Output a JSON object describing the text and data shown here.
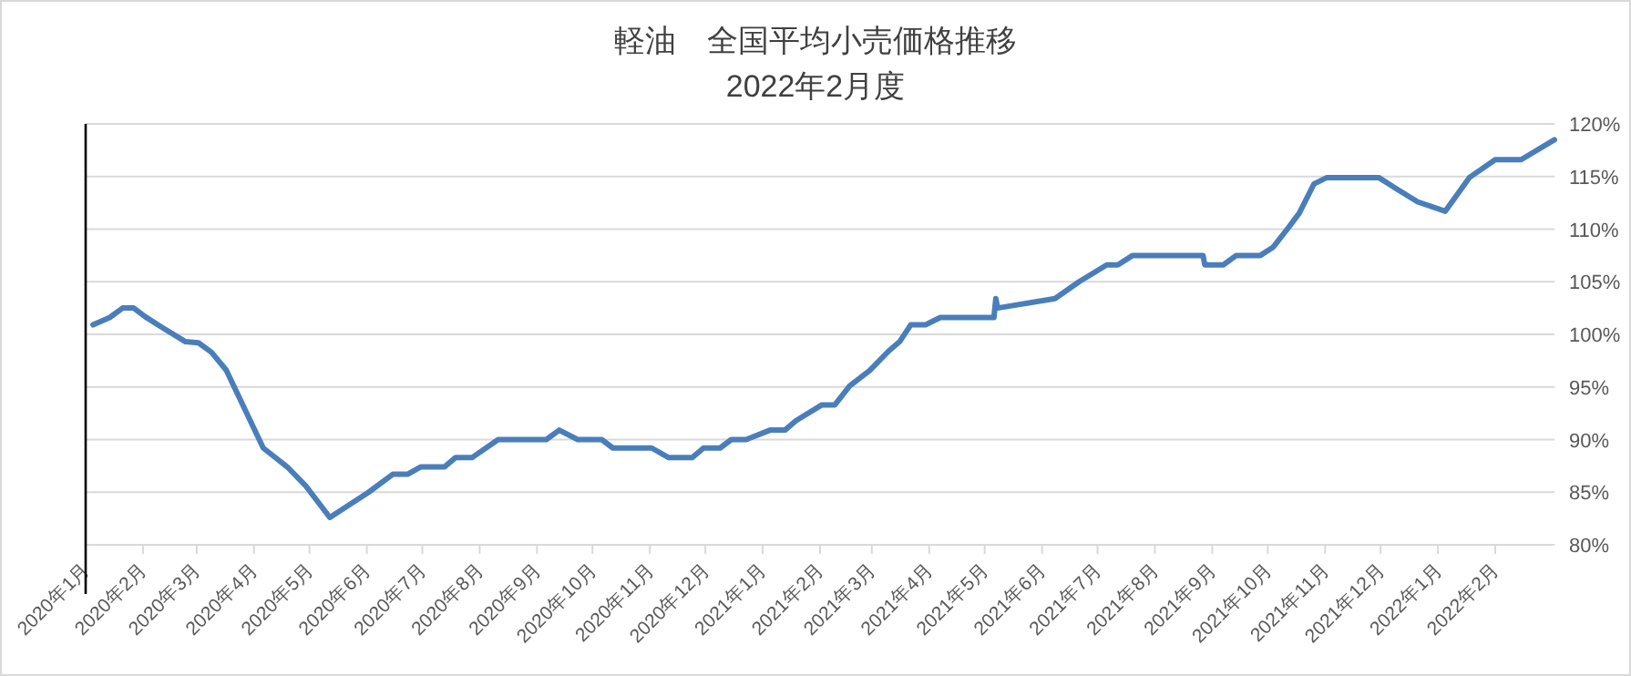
{
  "chart_data": {
    "type": "line",
    "title": "軽油　全国平均小売価格推移",
    "subtitle": "2022年2月度",
    "color": "#4a7ebb",
    "grid": "y",
    "xlim": [
      "2020-01-01",
      "2022-03-05"
    ],
    "xticks": [
      {
        "value": "2020-01",
        "label": "2020年1月"
      },
      {
        "value": "2020-02",
        "label": "2020年2月"
      },
      {
        "value": "2020-03",
        "label": "2020年3月"
      },
      {
        "value": "2020-04",
        "label": "2020年4月"
      },
      {
        "value": "2020-05",
        "label": "2020年5月"
      },
      {
        "value": "2020-06",
        "label": "2020年6月"
      },
      {
        "value": "2020-07",
        "label": "2020年7月"
      },
      {
        "value": "2020-08",
        "label": "2020年8月"
      },
      {
        "value": "2020-09",
        "label": "2020年9月"
      },
      {
        "value": "2020-10",
        "label": "2020年10月"
      },
      {
        "value": "2020-11",
        "label": "2020年11月"
      },
      {
        "value": "2020-12",
        "label": "2020年12月"
      },
      {
        "value": "2021-01",
        "label": "2021年1月"
      },
      {
        "value": "2021-02",
        "label": "2021年2月"
      },
      {
        "value": "2021-03",
        "label": "2021年3月"
      },
      {
        "value": "2021-04",
        "label": "2021年4月"
      },
      {
        "value": "2021-05",
        "label": "2021年5月"
      },
      {
        "value": "2021-06",
        "label": "2021年6月"
      },
      {
        "value": "2021-07",
        "label": "2021年7月"
      },
      {
        "value": "2021-08",
        "label": "2021年8月"
      },
      {
        "value": "2021-09",
        "label": "2021年9月"
      },
      {
        "value": "2021-10",
        "label": "2021年10月"
      },
      {
        "value": "2021-11",
        "label": "2021年11月"
      },
      {
        "value": "2021-12",
        "label": "2021年12月"
      },
      {
        "value": "2022-01",
        "label": "2022年1月"
      },
      {
        "value": "2022-02",
        "label": "2022年2月"
      }
    ],
    "ylim": [
      80,
      120
    ],
    "yticks": [
      {
        "value": 80,
        "label": "80%"
      },
      {
        "value": 85,
        "label": "85%"
      },
      {
        "value": 90,
        "label": "90%"
      },
      {
        "value": 95,
        "label": "95%"
      },
      {
        "value": 100,
        "label": "100%"
      },
      {
        "value": 105,
        "label": "105%"
      },
      {
        "value": 110,
        "label": "110%"
      },
      {
        "value": 115,
        "label": "115%"
      },
      {
        "value": 120,
        "label": "120%"
      }
    ],
    "x": [
      "2020-01-05",
      "2020-01-14",
      "2020-01-21",
      "2020-01-27",
      "2020-02-02",
      "2020-02-11",
      "2020-02-24",
      "2020-03-02",
      "2020-03-09",
      "2020-03-17",
      "2020-04-06",
      "2020-04-19",
      "2020-04-29",
      "2020-05-12",
      "2020-06-02",
      "2020-06-15",
      "2020-06-23",
      "2020-06-30",
      "2020-07-13",
      "2020-07-19",
      "2020-07-28",
      "2020-08-11",
      "2020-09-06",
      "2020-09-13",
      "2020-09-23",
      "2020-10-06",
      "2020-10-12",
      "2020-11-02",
      "2020-11-11",
      "2020-11-24",
      "2020-11-30",
      "2020-12-09",
      "2020-12-15",
      "2020-12-23",
      "2021-01-05",
      "2021-01-13",
      "2021-01-19",
      "2021-02-02",
      "2021-02-09",
      "2021-02-17",
      "2021-02-28",
      "2021-03-10",
      "2021-03-16",
      "2021-03-22",
      "2021-03-30",
      "2021-04-07",
      "2021-05-06",
      "2021-05-07",
      "2021-05-08",
      "2021-06-08",
      "2021-06-21",
      "2021-07-06",
      "2021-07-12",
      "2021-07-20",
      "2021-08-27",
      "2021-08-28",
      "2021-09-07",
      "2021-09-14",
      "2021-09-27",
      "2021-10-04",
      "2021-10-12",
      "2021-10-18",
      "2021-10-26",
      "2021-11-02",
      "2021-11-30",
      "2021-12-09",
      "2021-12-21",
      "2022-01-05",
      "2022-01-18",
      "2022-02-01",
      "2022-02-15",
      "2022-03-05"
    ],
    "values": [
      100.9,
      101.6,
      102.5,
      102.5,
      101.7,
      100.7,
      99.3,
      99.2,
      98.3,
      96.6,
      89.2,
      87.4,
      85.6,
      82.6,
      85.0,
      86.7,
      86.7,
      87.4,
      87.4,
      88.3,
      88.3,
      90.0,
      90.0,
      90.9,
      90.0,
      90.0,
      89.2,
      89.2,
      88.3,
      88.3,
      89.2,
      89.2,
      90.0,
      90.0,
      90.9,
      90.9,
      91.8,
      93.3,
      93.3,
      95.1,
      96.6,
      98.4,
      99.3,
      100.9,
      100.9,
      101.6,
      101.6,
      103.4,
      102.5,
      103.4,
      105.0,
      106.6,
      106.6,
      107.5,
      107.5,
      106.6,
      106.6,
      107.5,
      107.5,
      108.3,
      110.1,
      111.5,
      114.3,
      114.9,
      114.9,
      113.9,
      112.6,
      111.7,
      114.9,
      116.6,
      116.6,
      118.5
    ]
  }
}
